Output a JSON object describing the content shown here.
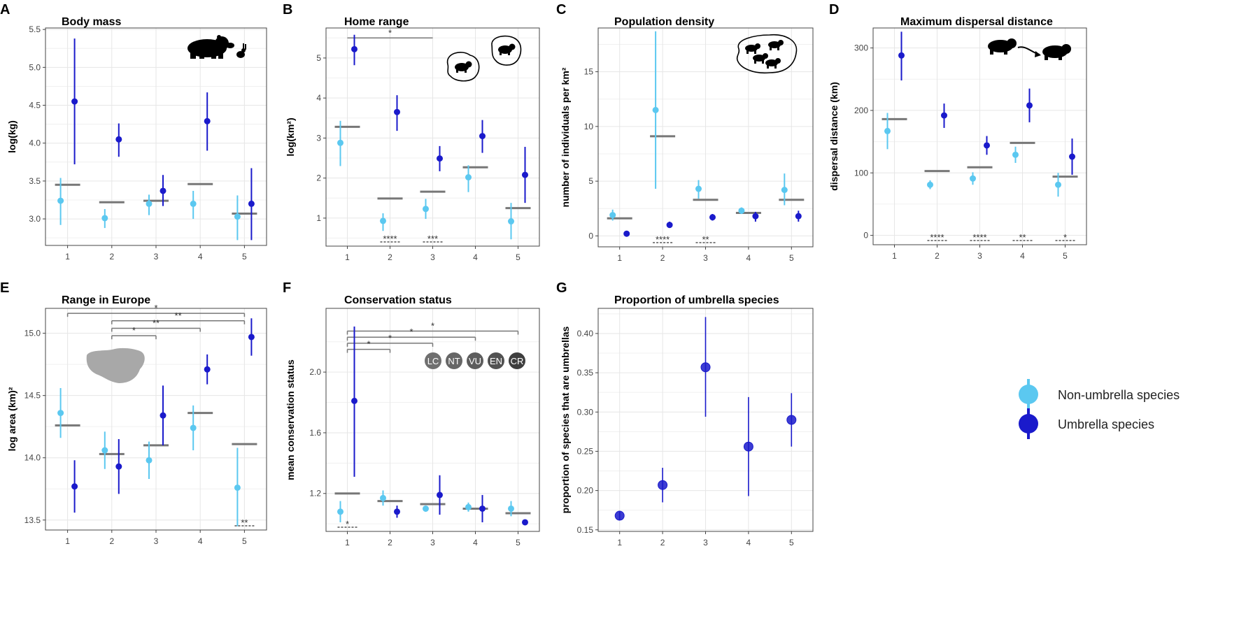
{
  "colors": {
    "non_umbrella": "#5bc8f0",
    "umbrella": "#1a1acb",
    "mean_bar": "#777777",
    "grid": "#e6e6e6",
    "frame": "#444444"
  },
  "legend": {
    "items": [
      {
        "label": "Non-umbrella species",
        "color": "#5bc8f0"
      },
      {
        "label": "Umbrella species",
        "color": "#1a1acb"
      }
    ]
  },
  "chart_data": [
    {
      "id": "A",
      "type": "scatter",
      "title": "Body mass",
      "ylabel": "log(kg)",
      "categories": [
        "1",
        "2",
        "3",
        "4",
        "5"
      ],
      "ylim": [
        2.65,
        5.52
      ],
      "yticks": [
        3.0,
        3.5,
        4.0,
        4.5,
        5.0,
        5.5
      ],
      "ytick_labels": [
        "3.0",
        "3.5",
        "4.0",
        "4.5",
        "5.0",
        "5.5"
      ],
      "series": [
        {
          "name": "Non-umbrella species",
          "values": [
            3.24,
            3.01,
            3.2,
            3.2,
            3.03
          ],
          "lower": [
            2.92,
            2.88,
            3.05,
            3.0,
            2.72
          ],
          "upper": [
            3.54,
            3.13,
            3.32,
            3.37,
            3.31
          ]
        },
        {
          "name": "Umbrella species",
          "values": [
            4.55,
            4.05,
            3.37,
            4.29,
            3.2
          ],
          "lower": [
            3.72,
            3.82,
            3.17,
            3.9,
            2.72
          ],
          "upper": [
            5.38,
            4.26,
            3.58,
            4.67,
            3.67
          ]
        }
      ],
      "means": [
        3.45,
        3.22,
        3.24,
        3.46,
        3.07
      ],
      "sig_below": [],
      "brackets": [],
      "icon": "bear-and-rabbit-icon"
    },
    {
      "id": "B",
      "type": "scatter",
      "title": "Home range",
      "ylabel": "log(km²)",
      "categories": [
        "1",
        "2",
        "3",
        "4",
        "5"
      ],
      "ylim": [
        0.3,
        5.75
      ],
      "yticks": [
        1,
        2,
        3,
        4,
        5
      ],
      "ytick_labels": [
        "1",
        "2",
        "3",
        "4",
        "5"
      ],
      "series": [
        {
          "name": "Non-umbrella species",
          "values": [
            2.88,
            0.93,
            1.23,
            2.02,
            0.92
          ],
          "lower": [
            2.3,
            0.68,
            0.98,
            1.65,
            0.47
          ],
          "upper": [
            3.43,
            1.12,
            1.48,
            2.32,
            1.38
          ]
        },
        {
          "name": "Umbrella species",
          "values": [
            5.22,
            3.65,
            2.49,
            3.05,
            2.08
          ],
          "lower": [
            4.82,
            3.18,
            2.17,
            2.63,
            1.38
          ],
          "upper": [
            5.58,
            4.07,
            2.8,
            3.45,
            2.78
          ]
        }
      ],
      "means": [
        3.28,
        1.49,
        1.66,
        2.27,
        1.25
      ],
      "sig_below": [
        {
          "x": 2,
          "label": "****"
        },
        {
          "x": 3,
          "label": "***"
        }
      ],
      "brackets": [
        {
          "from": 1,
          "to": 3,
          "y": 5.5,
          "label": "*",
          "ticks": false
        }
      ],
      "icon": "territory-icon"
    },
    {
      "id": "C",
      "type": "scatter",
      "title": "Population density",
      "ylabel": "number of individuals per km²",
      "categories": [
        "1",
        "2",
        "3",
        "4",
        "5"
      ],
      "ylim": [
        -1.0,
        19.0
      ],
      "yticks": [
        0,
        5,
        10,
        15
      ],
      "ytick_labels": [
        "0",
        "5",
        "10",
        "15"
      ],
      "series": [
        {
          "name": "Non-umbrella species",
          "values": [
            1.9,
            11.5,
            4.3,
            2.3,
            4.2
          ],
          "lower": [
            1.4,
            4.3,
            3.4,
            2.0,
            2.8
          ],
          "upper": [
            2.4,
            18.7,
            5.1,
            2.6,
            5.7
          ]
        },
        {
          "name": "Umbrella species",
          "values": [
            0.2,
            1.0,
            1.7,
            1.8,
            1.8
          ],
          "lower": [
            0.05,
            0.75,
            1.4,
            1.3,
            1.3
          ],
          "upper": [
            0.35,
            1.3,
            2.0,
            2.2,
            2.3
          ]
        }
      ],
      "means": [
        1.6,
        9.1,
        3.3,
        2.1,
        3.3
      ],
      "sig_below": [
        {
          "x": 2,
          "label": "****"
        },
        {
          "x": 3,
          "label": "**"
        }
      ],
      "brackets": [],
      "icon": "population-icon"
    },
    {
      "id": "D",
      "type": "scatter",
      "title": "Maximum dispersal distance",
      "ylabel": "dispersal distance (km)",
      "categories": [
        "1",
        "2",
        "3",
        "4",
        "5"
      ],
      "ylim": [
        -15,
        332
      ],
      "yticks": [
        0,
        100,
        200,
        300
      ],
      "ytick_labels": [
        "0",
        "100",
        "200",
        "300"
      ],
      "series": [
        {
          "name": "Non-umbrella species",
          "values": [
            167,
            81,
            91,
            129,
            81
          ],
          "lower": [
            138,
            74,
            81,
            116,
            62
          ],
          "upper": [
            196,
            88,
            101,
            142,
            100
          ]
        },
        {
          "name": "Umbrella species",
          "values": [
            288,
            192,
            144,
            208,
            126
          ],
          "lower": [
            248,
            172,
            129,
            181,
            97
          ],
          "upper": [
            326,
            211,
            159,
            235,
            155
          ]
        }
      ],
      "means": [
        186,
        103,
        109,
        148,
        94
      ],
      "sig_below": [
        {
          "x": 2,
          "label": "****"
        },
        {
          "x": 3,
          "label": "****"
        },
        {
          "x": 4,
          "label": "**"
        },
        {
          "x": 5,
          "label": "*"
        }
      ],
      "brackets": [],
      "icon": "dispersal-icon"
    },
    {
      "id": "E",
      "type": "scatter",
      "title": "Range in Europe",
      "ylabel": "log area (km)²",
      "categories": [
        "1",
        "2",
        "3",
        "4",
        "5"
      ],
      "ylim": [
        13.42,
        15.2
      ],
      "yticks": [
        13.5,
        14.0,
        14.5,
        15.0
      ],
      "ytick_labels": [
        "13.5",
        "14.0",
        "14.5",
        "15.0"
      ],
      "series": [
        {
          "name": "Non-umbrella species",
          "values": [
            14.36,
            14.06,
            13.98,
            14.24,
            13.76
          ],
          "lower": [
            14.16,
            13.91,
            13.83,
            14.06,
            13.45
          ],
          "upper": [
            14.56,
            14.21,
            14.13,
            14.42,
            14.08
          ]
        },
        {
          "name": "Umbrella species",
          "values": [
            13.77,
            13.93,
            14.34,
            14.71,
            14.97
          ],
          "lower": [
            13.56,
            13.71,
            14.1,
            14.59,
            14.82
          ],
          "upper": [
            13.98,
            14.15,
            14.58,
            14.83,
            15.12
          ]
        }
      ],
      "means": [
        14.26,
        14.03,
        14.1,
        14.36,
        14.11
      ],
      "sig_below": [
        {
          "x": 5,
          "label": "**"
        }
      ],
      "brackets": [
        {
          "from": 1,
          "to": 5,
          "y": 15.16,
          "label": "*",
          "ticks": true
        },
        {
          "from": 2,
          "to": 5,
          "y": 15.1,
          "label": "**",
          "ticks": true
        },
        {
          "from": 2,
          "to": 4,
          "y": 15.04,
          "label": "**",
          "ticks": true
        },
        {
          "from": 2,
          "to": 3,
          "y": 14.98,
          "label": "*",
          "ticks": true
        }
      ],
      "icon": "europe-map-icon"
    },
    {
      "id": "F",
      "type": "scatter",
      "title": "Conservation status",
      "ylabel": "mean conservation status",
      "categories": [
        "1",
        "2",
        "3",
        "4",
        "5"
      ],
      "ylim": [
        0.95,
        2.42
      ],
      "yticks": [
        1.2,
        1.6,
        2.0
      ],
      "ytick_labels": [
        "1.2",
        "1.6",
        "2.0"
      ],
      "series": [
        {
          "name": "Non-umbrella species",
          "values": [
            1.08,
            1.17,
            1.1,
            1.11,
            1.1
          ],
          "lower": [
            1.01,
            1.12,
            1.08,
            1.08,
            1.05
          ],
          "upper": [
            1.15,
            1.22,
            1.12,
            1.14,
            1.15
          ]
        },
        {
          "name": "Umbrella species",
          "values": [
            1.81,
            1.08,
            1.19,
            1.1,
            1.01
          ],
          "lower": [
            1.31,
            1.04,
            1.06,
            1.01,
            1.0
          ],
          "upper": [
            2.3,
            1.12,
            1.32,
            1.19,
            1.02
          ]
        }
      ],
      "means": [
        1.2,
        1.15,
        1.13,
        1.1,
        1.07
      ],
      "sig_below": [
        {
          "x": 1,
          "label": "*"
        }
      ],
      "brackets": [
        {
          "from": 1,
          "to": 5,
          "y": 2.27,
          "label": "*",
          "ticks": true
        },
        {
          "from": 1,
          "to": 4,
          "y": 2.23,
          "label": "*",
          "ticks": true
        },
        {
          "from": 1,
          "to": 3,
          "y": 2.19,
          "label": "*",
          "ticks": true
        },
        {
          "from": 1,
          "to": 2,
          "y": 2.15,
          "label": "*",
          "ticks": true
        }
      ],
      "icon": "iucn-status-icons",
      "status_labels": [
        "LC",
        "NT",
        "VU",
        "EN",
        "CR"
      ]
    },
    {
      "id": "G",
      "type": "scatter",
      "title": "Proportion of umbrella species",
      "ylabel": "proportion of species that are umbrellas",
      "categories": [
        "1",
        "2",
        "3",
        "4",
        "5"
      ],
      "ylim": [
        0.148,
        0.432
      ],
      "yticks": [
        0.15,
        0.2,
        0.25,
        0.3,
        0.35,
        0.4
      ],
      "ytick_labels": [
        "0.15",
        "0.20",
        "0.25",
        "0.30",
        "0.35",
        "0.40"
      ],
      "series": [
        {
          "name": "Umbrella species",
          "values": [
            0.168,
            0.207,
            0.357,
            0.256,
            0.29
          ],
          "lower": [
            0.162,
            0.185,
            0.294,
            0.193,
            0.256
          ],
          "upper": [
            0.174,
            0.229,
            0.421,
            0.319,
            0.324
          ]
        }
      ],
      "means": [],
      "sig_below": [],
      "brackets": [],
      "icon": ""
    }
  ]
}
